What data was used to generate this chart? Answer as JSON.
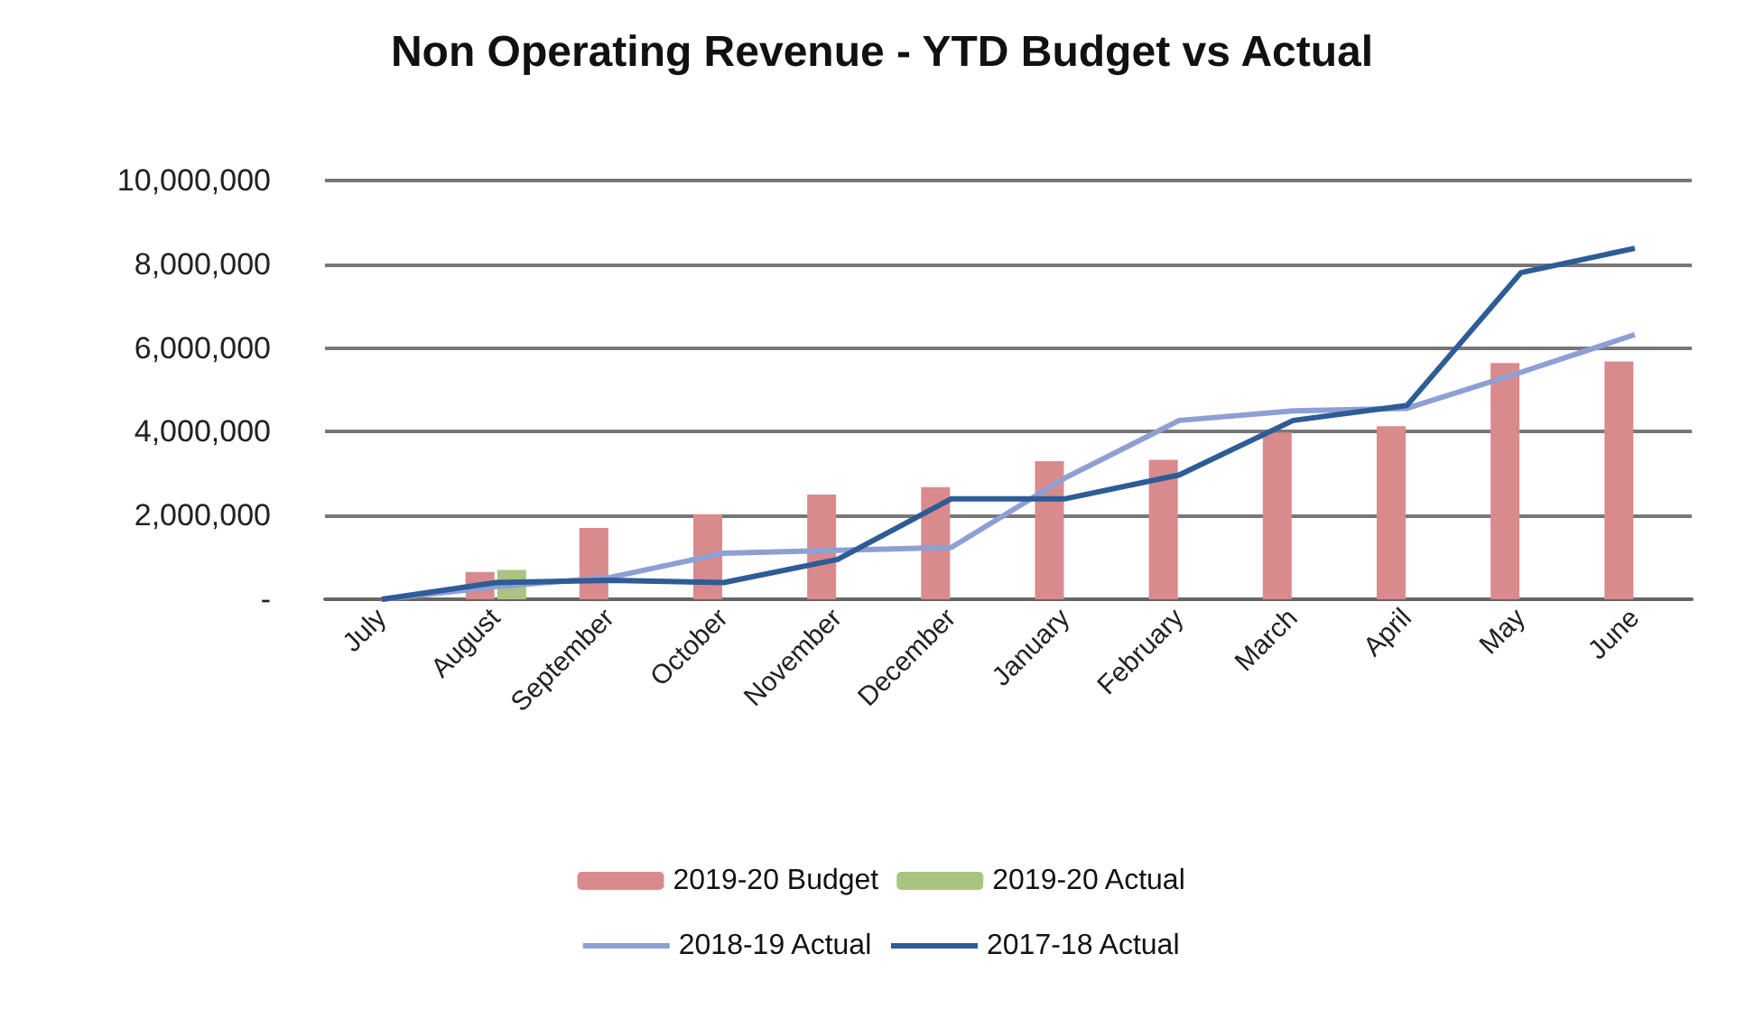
{
  "chart_data": {
    "type": "bar",
    "title": "Non Operating Revenue - YTD Budget vs Actual",
    "categories": [
      "July",
      "August",
      "September",
      "October",
      "November",
      "December",
      "January",
      "February",
      "March",
      "April",
      "May",
      "June"
    ],
    "series": [
      {
        "name": "2019-20 Budget",
        "color": "#d98a8c",
        "values": [
          null,
          650000,
          1700000,
          2030000,
          2500000,
          2680000,
          3300000,
          3330000,
          3980000,
          4130000,
          5640000,
          5680000
        ]
      },
      {
        "name": "2019-20 Actual",
        "color": "#a9c47f",
        "values": [
          null,
          700000,
          null,
          null,
          null,
          null,
          null,
          null,
          null,
          null,
          null,
          null
        ]
      },
      {
        "name": "2018-19 Actual",
        "type": "line",
        "color": "#8e9fd4",
        "values": [
          0,
          300000,
          520000,
          1100000,
          1170000,
          1240000,
          2900000,
          4270000,
          4500000,
          4560000,
          5420000,
          6320000
        ]
      },
      {
        "name": "2017-18 Actual",
        "type": "line",
        "color": "#2e5c96",
        "values": [
          0,
          400000,
          450000,
          400000,
          950000,
          2400000,
          2400000,
          2970000,
          4270000,
          4630000,
          7800000,
          8380000
        ]
      }
    ],
    "ylim": [
      0,
      10000000
    ],
    "yticks": [
      {
        "value": 0,
        "label": "-"
      },
      {
        "value": 2000000,
        "label": "2,000,000"
      },
      {
        "value": 4000000,
        "label": "4,000,000"
      },
      {
        "value": 6000000,
        "label": "6,000,000"
      },
      {
        "value": 8000000,
        "label": "8,000,000"
      },
      {
        "value": 10000000,
        "label": "10,000,000"
      }
    ],
    "grid": "y",
    "legend": "bottom",
    "marker": "none"
  }
}
